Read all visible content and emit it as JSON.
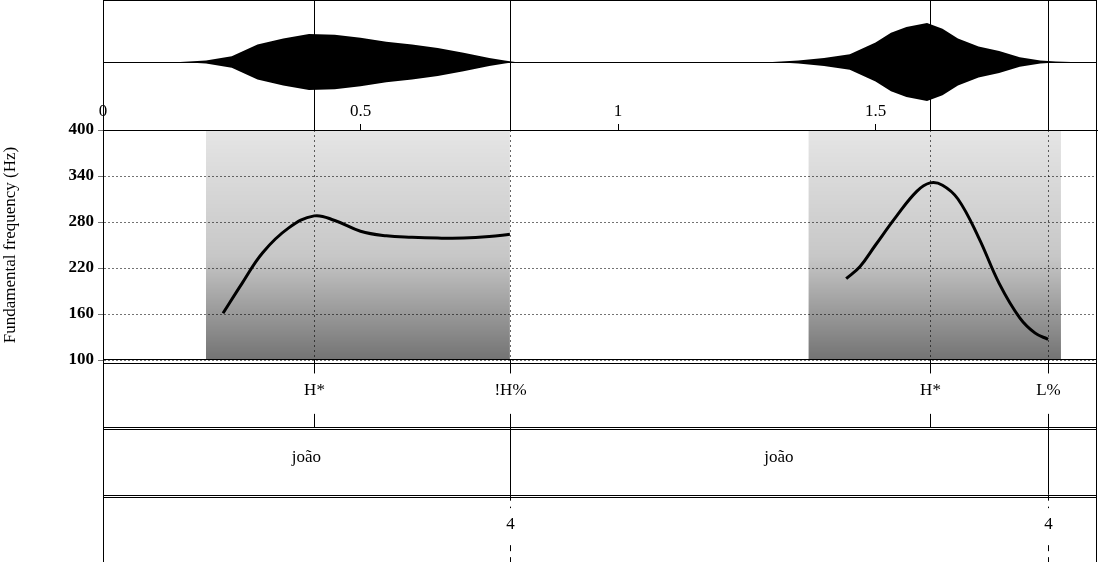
{
  "chart_data": {
    "type": "line",
    "y_label": "Fundamental frequency (Hz)",
    "xlim": [
      0,
      1.93
    ],
    "xticks": [
      0,
      0.5,
      1,
      1.5
    ],
    "ylim": [
      100,
      400
    ],
    "yticks": [
      100,
      160,
      220,
      280,
      340,
      400
    ],
    "grid": true,
    "series": [
      {
        "color": "#000000",
        "x": [
          0.233,
          0.27,
          0.31,
          0.36,
          0.41,
          0.45,
          0.5,
          0.55,
          0.6,
          0.65,
          0.7,
          0.75,
          0.79
        ],
        "values": [
          161,
          200,
          240,
          272,
          288,
          282,
          268,
          262,
          260,
          259,
          259,
          261,
          264
        ]
      },
      {
        "color": "#000000",
        "x": [
          1.443,
          1.47,
          1.5,
          1.54,
          1.58,
          1.606,
          1.63,
          1.66,
          1.7,
          1.74,
          1.78,
          1.81,
          1.835
        ],
        "values": [
          206,
          222,
          250,
          287,
          320,
          331,
          328,
          310,
          260,
          200,
          155,
          135,
          127
        ]
      }
    ],
    "waveform": {
      "time": [
        0.15,
        0.2,
        0.25,
        0.3,
        0.35,
        0.4,
        0.45,
        0.5,
        0.55,
        0.6,
        0.65,
        0.7,
        0.75,
        0.78,
        0.8,
        1.3,
        1.35,
        1.4,
        1.45,
        1.5,
        1.53,
        1.56,
        1.6,
        1.63,
        1.66,
        1.7,
        1.74,
        1.78,
        1.82,
        1.85,
        1.88
      ],
      "amplitude": [
        0.0,
        0.04,
        0.15,
        0.45,
        0.6,
        0.72,
        0.7,
        0.62,
        0.52,
        0.45,
        0.36,
        0.24,
        0.1,
        0.04,
        0.0,
        0.0,
        0.04,
        0.1,
        0.2,
        0.5,
        0.75,
        0.9,
        1.0,
        0.85,
        0.6,
        0.4,
        0.28,
        0.12,
        0.04,
        0.01,
        0.0
      ]
    },
    "voiced_intervals": [
      [
        0.2,
        0.79
      ],
      [
        1.37,
        1.86
      ]
    ],
    "tiers": [
      {
        "points": [
          {
            "time": 0.41,
            "text": "H*"
          },
          {
            "time": 0.79,
            "text": "!H%"
          },
          {
            "time": 1.606,
            "text": "H*"
          },
          {
            "time": 1.835,
            "text": "L%"
          }
        ]
      },
      {
        "intervals": [
          {
            "start": 0,
            "end": 0.79,
            "text": "joão"
          },
          {
            "start": 0.79,
            "end": 1.835,
            "text": "joão"
          }
        ]
      },
      {
        "points": [
          {
            "time": 0.79,
            "text": "4"
          },
          {
            "time": 1.835,
            "text": "4"
          }
        ]
      }
    ]
  }
}
